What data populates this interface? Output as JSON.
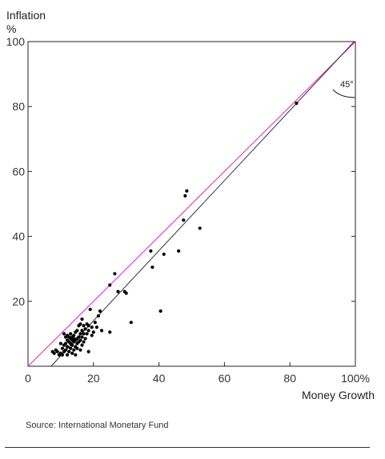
{
  "chart_data": {
    "type": "scatter",
    "ylabel": "Inflation",
    "yunit": "%",
    "xlabel": "Money Growth",
    "xlim": [
      0,
      100
    ],
    "ylim": [
      0,
      100
    ],
    "xticks": [
      0,
      20,
      40,
      60,
      80,
      100
    ],
    "xtick_labels": [
      "0",
      "20",
      "40",
      "60",
      "80",
      "100%"
    ],
    "yticks": [
      20,
      40,
      60,
      80,
      100
    ],
    "ytick_labels": [
      "20",
      "40",
      "60",
      "80",
      "100"
    ],
    "reference_lines": [
      {
        "name": "45-degree line",
        "color": "#e020c0",
        "slope": 1,
        "intercept": 0
      },
      {
        "name": "fitted line",
        "color": "#333333",
        "slope": 1.08,
        "intercept": -7.6
      }
    ],
    "angle_annotation": "45°",
    "point_color": "#000000",
    "points": [
      [
        7.5,
        4.5
      ],
      [
        8.0,
        4.0
      ],
      [
        8.5,
        5.0
      ],
      [
        9.0,
        4.5
      ],
      [
        9.5,
        3.5
      ],
      [
        10.0,
        4.0
      ],
      [
        10.0,
        7.0
      ],
      [
        10.5,
        5.5
      ],
      [
        10.5,
        3.5
      ],
      [
        11.0,
        4.5
      ],
      [
        11.0,
        6.5
      ],
      [
        11.0,
        10.0
      ],
      [
        11.5,
        5.0
      ],
      [
        11.5,
        7.0
      ],
      [
        11.5,
        9.0
      ],
      [
        12.0,
        3.5
      ],
      [
        12.0,
        6.0
      ],
      [
        12.0,
        8.0
      ],
      [
        12.0,
        9.5
      ],
      [
        12.5,
        4.5
      ],
      [
        12.5,
        7.5
      ],
      [
        12.5,
        9.0
      ],
      [
        13.0,
        5.5
      ],
      [
        13.0,
        7.0
      ],
      [
        13.0,
        8.5
      ],
      [
        13.0,
        10.0
      ],
      [
        13.5,
        4.0
      ],
      [
        13.5,
        6.5
      ],
      [
        13.5,
        8.0
      ],
      [
        13.5,
        9.0
      ],
      [
        14.0,
        5.0
      ],
      [
        14.0,
        7.5
      ],
      [
        14.0,
        8.5
      ],
      [
        14.0,
        9.5
      ],
      [
        14.5,
        3.5
      ],
      [
        14.5,
        6.0
      ],
      [
        14.5,
        8.0
      ],
      [
        14.5,
        10.5
      ],
      [
        15.0,
        5.5
      ],
      [
        15.0,
        7.0
      ],
      [
        15.0,
        8.5
      ],
      [
        15.0,
        11.0
      ],
      [
        15.5,
        7.5
      ],
      [
        15.5,
        9.0
      ],
      [
        15.5,
        12.5
      ],
      [
        16.0,
        5.0
      ],
      [
        16.0,
        8.0
      ],
      [
        16.0,
        10.0
      ],
      [
        16.0,
        13.0
      ],
      [
        16.5,
        6.5
      ],
      [
        16.5,
        9.0
      ],
      [
        16.5,
        11.0
      ],
      [
        16.5,
        14.5
      ],
      [
        17.0,
        7.5
      ],
      [
        17.0,
        10.0
      ],
      [
        17.0,
        12.5
      ],
      [
        17.5,
        8.5
      ],
      [
        17.5,
        11.5
      ],
      [
        18.0,
        10.0
      ],
      [
        18.0,
        13.0
      ],
      [
        18.5,
        4.5
      ],
      [
        18.5,
        11.0
      ],
      [
        18.5,
        12.5
      ],
      [
        19.0,
        17.5
      ],
      [
        19.5,
        9.5
      ],
      [
        19.5,
        12.0
      ],
      [
        20.0,
        10.5
      ],
      [
        20.5,
        13.5
      ],
      [
        21.0,
        12.0
      ],
      [
        21.5,
        15.5
      ],
      [
        22.0,
        17.0
      ],
      [
        22.5,
        11.0
      ],
      [
        25.0,
        10.5
      ],
      [
        25.0,
        25.0
      ],
      [
        26.5,
        28.5
      ],
      [
        27.5,
        23.0
      ],
      [
        29.5,
        23.0
      ],
      [
        30.0,
        22.5
      ],
      [
        31.5,
        13.5
      ],
      [
        37.5,
        35.5
      ],
      [
        38.0,
        30.5
      ],
      [
        40.5,
        17.0
      ],
      [
        41.5,
        34.5
      ],
      [
        46.0,
        35.5
      ],
      [
        47.5,
        45.0
      ],
      [
        48.0,
        52.5
      ],
      [
        48.5,
        54.0
      ],
      [
        52.5,
        42.5
      ],
      [
        82.0,
        81.0
      ]
    ]
  },
  "footer": {
    "source": "Source: International Monetary Fund"
  }
}
